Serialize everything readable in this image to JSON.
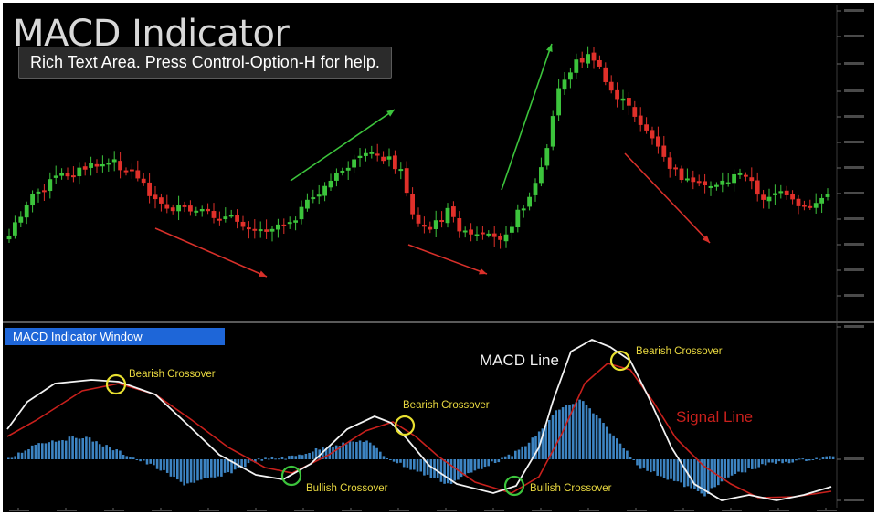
{
  "title": "MACD Indicator",
  "tooltip": "Rich Text Area. Press Control-Option-H for help.",
  "window_label": "MACD Indicator Window",
  "colors": {
    "background": "#000000",
    "bull_candle": "#3cc43c",
    "bear_candle": "#e0302a",
    "macd_line": "#f2f2f2",
    "signal_line": "#c8201c",
    "histogram": "#3d84c2",
    "bearish_marker": "#e8e030",
    "bullish_marker": "#3cc43c",
    "trend_up": "#3cc43c",
    "trend_down": "#d8302a",
    "annotation_text": "#e8d840"
  },
  "chart_data": [
    {
      "type": "candlestick",
      "title": "",
      "trend_arrows": [
        {
          "direction": "down"
        },
        {
          "direction": "up"
        },
        {
          "direction": "down"
        },
        {
          "direction": "up"
        },
        {
          "direction": "down"
        }
      ]
    },
    {
      "type": "line",
      "title": "MACD Indicator Window",
      "series": [
        {
          "name": "MACD Line"
        },
        {
          "name": "Signal Line"
        }
      ],
      "annotations": [
        {
          "label": "Bearish Crossover",
          "type": "bearish"
        },
        {
          "label": "Bullish Crossover",
          "type": "bullish"
        },
        {
          "label": "Bearish Crossover",
          "type": "bearish"
        },
        {
          "label": "Bullish Crossover",
          "type": "bullish"
        },
        {
          "label": "Bearish Crossover",
          "type": "bearish"
        }
      ]
    }
  ]
}
